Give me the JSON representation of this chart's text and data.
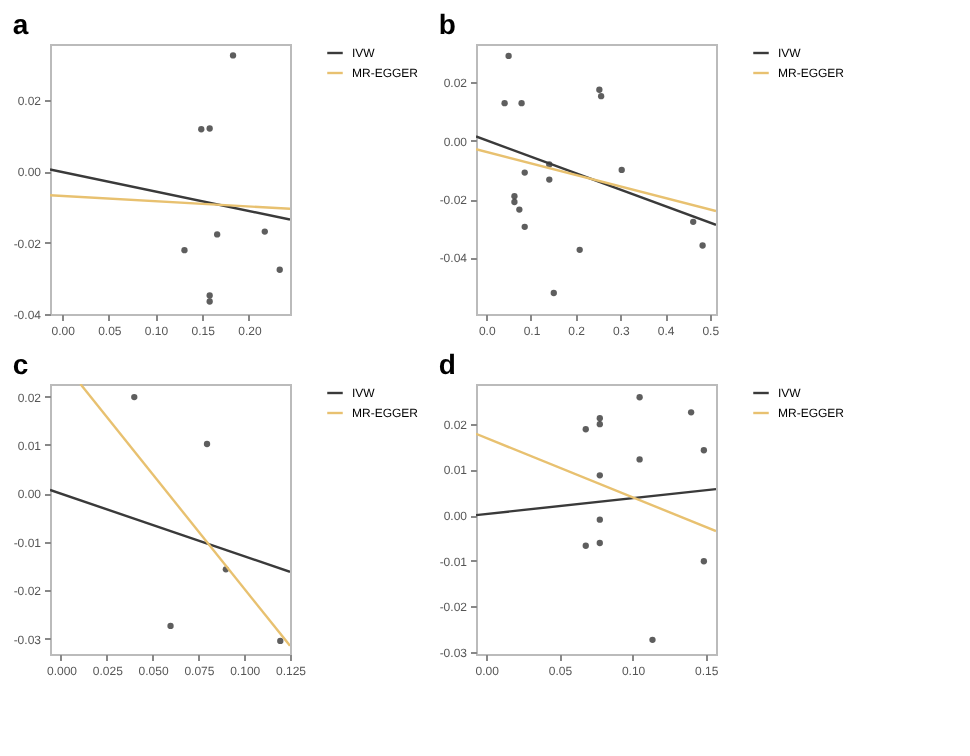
{
  "chart_data": [
    {
      "type": "scatter",
      "title": "a",
      "legend": "right",
      "grid": false,
      "xlim": [
        -0.013,
        0.244
      ],
      "ylim": [
        -0.04,
        0.0357
      ],
      "xticks": [
        {
          "value": 0,
          "label": "0.00"
        },
        {
          "value": 0.05,
          "label": "0.05"
        },
        {
          "value": 0.1,
          "label": "0.10"
        },
        {
          "value": 0.15,
          "label": "0.15"
        },
        {
          "value": 0.2,
          "label": "0.20"
        }
      ],
      "yticks": [
        {
          "value": -0.04,
          "label": "-0.04"
        },
        {
          "value": -0.02,
          "label": "-0.02"
        },
        {
          "value": 0,
          "label": "0.00"
        },
        {
          "value": 0.02,
          "label": "0.02"
        }
      ],
      "series": [
        {
          "marker": "circle",
          "color": "#1a1a1a",
          "x": [
            0.183,
            0.149,
            0.158,
            0.131,
            0.166,
            0.217,
            0.233,
            0.158,
            0.158
          ],
          "values": [
            0.0325,
            0.0118,
            0.012,
            -0.0221,
            -0.0177,
            -0.0169,
            -0.0276,
            -0.0348,
            -0.0365
          ]
        },
        {
          "type": "line",
          "name": "IVW",
          "color": "#3a3a3a",
          "x": [
            -0.013,
            0.244
          ],
          "values": [
            0.0005,
            -0.0135
          ]
        },
        {
          "type": "line",
          "name": "MR-EGGER",
          "color": "#e8c170",
          "x": [
            -0.013,
            0.244
          ],
          "values": [
            -0.0067,
            -0.0105
          ]
        }
      ]
    },
    {
      "type": "scatter",
      "title": "b",
      "legend": "right",
      "grid": false,
      "xlim": [
        -0.023,
        0.514
      ],
      "ylim": [
        -0.0594,
        0.0332
      ],
      "xticks": [
        {
          "value": 0,
          "label": "0.0"
        },
        {
          "value": 0.1,
          "label": "0.1"
        },
        {
          "value": 0.2,
          "label": "0.2"
        },
        {
          "value": 0.3,
          "label": "0.3"
        },
        {
          "value": 0.4,
          "label": "0.4"
        },
        {
          "value": 0.5,
          "label": "0.5"
        }
      ],
      "yticks": [
        {
          "value": -0.04,
          "label": "-0.04"
        },
        {
          "value": -0.02,
          "label": "-0.02"
        },
        {
          "value": 0,
          "label": "0.00"
        },
        {
          "value": 0.02,
          "label": "0.02"
        }
      ],
      "series": [
        {
          "marker": "circle",
          "color": "#1a1a1a",
          "x": [
            0.05,
            0.041,
            0.079,
            0.253,
            0.257,
            0.141,
            0.086,
            0.141,
            0.303,
            0.063,
            0.063,
            0.074,
            0.086,
            0.209,
            0.151,
            0.463,
            0.484
          ],
          "values": [
            0.0291,
            0.0129,
            0.0129,
            0.0175,
            0.0153,
            -0.0081,
            -0.0109,
            -0.0133,
            -0.01,
            -0.019,
            -0.021,
            -0.0236,
            -0.0295,
            -0.0374,
            -0.0522,
            -0.0278,
            -0.0359
          ]
        },
        {
          "type": "line",
          "name": "IVW",
          "color": "#3a3a3a",
          "x": [
            -0.023,
            0.514
          ],
          "values": [
            0.0015,
            -0.0288
          ]
        },
        {
          "type": "line",
          "name": "MR-EGGER",
          "color": "#e8c170",
          "x": [
            -0.023,
            0.514
          ],
          "values": [
            -0.0029,
            -0.0241
          ]
        }
      ]
    },
    {
      "type": "scatter",
      "title": "c",
      "legend": "right",
      "grid": false,
      "xlim": [
        -0.006,
        0.125
      ],
      "ylim": [
        -0.0332,
        0.0226
      ],
      "xticks": [
        {
          "value": 0,
          "label": "0.000"
        },
        {
          "value": 0.025,
          "label": "0.025"
        },
        {
          "value": 0.05,
          "label": "0.050"
        },
        {
          "value": 0.075,
          "label": "0.075"
        },
        {
          "value": 0.1,
          "label": "0.100"
        },
        {
          "value": 0.125,
          "label": "0.125"
        }
      ],
      "yticks": [
        {
          "value": -0.03,
          "label": "-0.03"
        },
        {
          "value": -0.02,
          "label": "-0.02"
        },
        {
          "value": -0.01,
          "label": "-0.01"
        },
        {
          "value": 0,
          "label": "0.00"
        },
        {
          "value": 0.01,
          "label": "0.01"
        },
        {
          "value": 0.02,
          "label": "0.02"
        }
      ],
      "series": [
        {
          "marker": "circle",
          "color": "#1a1a1a",
          "x": [
            0.04,
            0.0797,
            0.09,
            0.0598,
            0.1197
          ],
          "values": [
            0.0199,
            0.0102,
            -0.0157,
            -0.0274,
            -0.0305
          ]
        },
        {
          "type": "line",
          "name": "IVW",
          "color": "#3a3a3a",
          "x": [
            -0.006,
            0.125
          ],
          "values": [
            0.0007,
            -0.0162
          ]
        },
        {
          "type": "line",
          "name": "MR-EGGER",
          "color": "#e8c170",
          "x": [
            0.0106,
            0.125
          ],
          "values": [
            0.0226,
            -0.0315
          ]
        }
      ]
    },
    {
      "type": "scatter",
      "title": "d",
      "legend": "right",
      "grid": false,
      "xlim": [
        -0.007,
        0.157
      ],
      "ylim": [
        -0.0304,
        0.0287
      ],
      "xticks": [
        {
          "value": 0,
          "label": "0.00"
        },
        {
          "value": 0.05,
          "label": "0.05"
        },
        {
          "value": 0.1,
          "label": "0.10"
        },
        {
          "value": 0.15,
          "label": "0.15"
        }
      ],
      "yticks": [
        {
          "value": -0.03,
          "label": "-0.03"
        },
        {
          "value": -0.02,
          "label": "-0.02"
        },
        {
          "value": -0.01,
          "label": "-0.01"
        },
        {
          "value": 0,
          "label": "0.00"
        },
        {
          "value": 0.01,
          "label": "0.01"
        },
        {
          "value": 0.02,
          "label": "0.02"
        }
      ],
      "series": [
        {
          "marker": "circle",
          "color": "#1a1a1a",
          "x": [
            0.1048,
            0.14,
            0.0776,
            0.0776,
            0.068,
            0.1487,
            0.1048,
            0.0776,
            0.0776,
            0.068,
            0.0776,
            0.1487,
            0.1136
          ],
          "values": [
            0.0258,
            0.0225,
            0.0212,
            0.0199,
            0.0188,
            0.0142,
            0.0122,
            0.0087,
            -0.001,
            -0.0067,
            -0.0061,
            -0.0101,
            -0.0273
          ]
        },
        {
          "type": "line",
          "name": "IVW",
          "color": "#3a3a3a",
          "x": [
            -0.007,
            0.157
          ],
          "values": [
            0.0,
            0.0057
          ]
        },
        {
          "type": "line",
          "name": "MR-EGGER",
          "color": "#e8c170",
          "x": [
            -0.007,
            0.157
          ],
          "values": [
            0.0178,
            -0.0035
          ]
        }
      ]
    }
  ]
}
